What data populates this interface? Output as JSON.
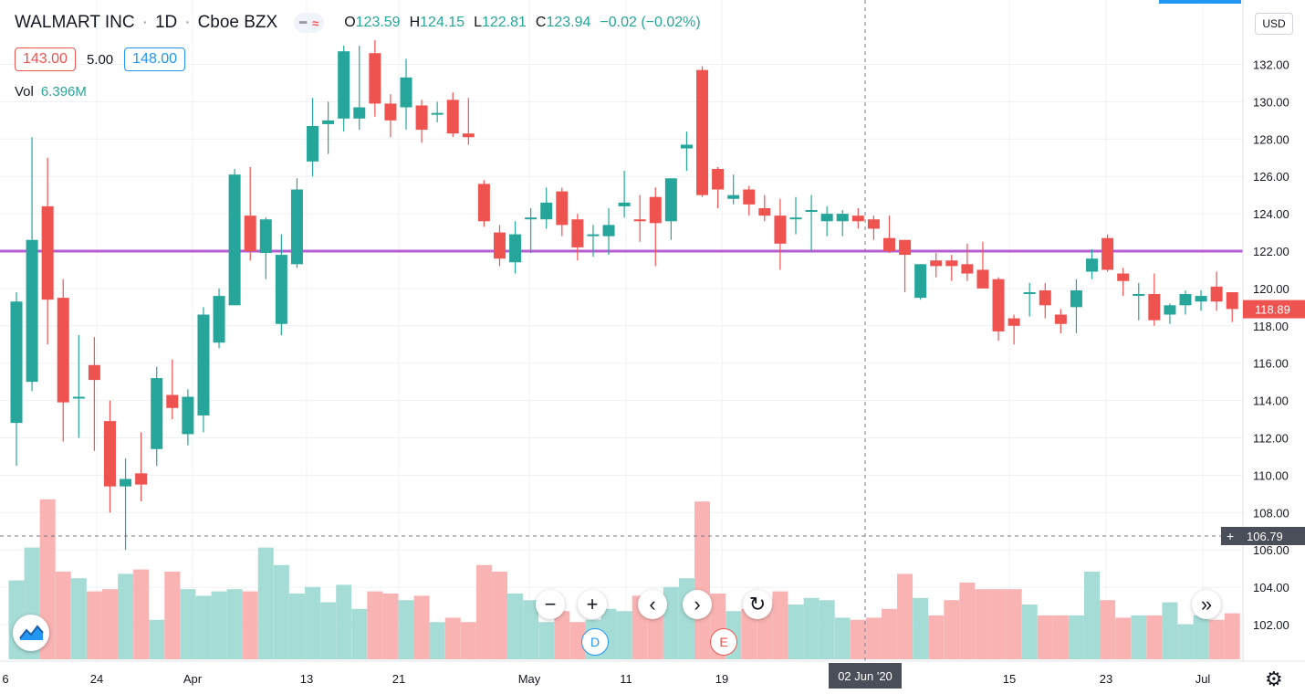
{
  "header": {
    "symbol": "WALMART INC",
    "interval": "1D",
    "exchange": "Cboe BZX",
    "ohlc": {
      "o_label": "O",
      "o": "123.59",
      "h_label": "H",
      "h": "124.15",
      "l_label": "L",
      "l": "122.81",
      "c_label": "C",
      "c": "123.94",
      "change": "−0.02 (−0.02%)"
    },
    "sell_price": "143.00",
    "spread": "5.00",
    "buy_price": "148.00",
    "vol_label": "Vol",
    "vol_value": "6.396M"
  },
  "currency_button": "USD",
  "crosshair": {
    "date_label": "02 Jun '20",
    "price_label": "106.79"
  },
  "last_price_label": "118.89",
  "nav": {
    "zoom_out": "−",
    "zoom_in": "+",
    "scroll_left": "‹",
    "scroll_right": "›",
    "reset": "↻",
    "go_to_end": "»"
  },
  "events": {
    "dividend": "D",
    "earnings": "E"
  },
  "colors": {
    "up": "#26a69a",
    "down": "#ef5350",
    "vol_up": "#a6dcd6",
    "vol_down": "#f8b3b2",
    "hline": "#b45ed1",
    "grid": "#eef0f4"
  },
  "icons": [
    "tradingview-logo-icon",
    "settings-gear-icon",
    "price-plus-icon"
  ],
  "chart_data": {
    "type": "candlestick",
    "horizontal_line": 122.0,
    "ylim": [
      100.0,
      134.0
    ],
    "y_ticks": [
      "132.00",
      "130.00",
      "128.00",
      "126.00",
      "124.00",
      "122.00",
      "120.00",
      "118.00",
      "116.00",
      "114.00",
      "112.00",
      "110.00",
      "108.00",
      "106.00",
      "104.00",
      "102.00"
    ],
    "x_tick_labels": [
      "6",
      "24",
      "Apr",
      "13",
      "21",
      "May",
      "11",
      "19",
      "15",
      "23",
      "Jul"
    ],
    "candles": [
      {
        "o": 112.8,
        "h": 119.8,
        "l": 110.5,
        "c": 119.3
      },
      {
        "o": 115.0,
        "h": 128.1,
        "l": 114.5,
        "c": 122.6
      },
      {
        "o": 124.4,
        "h": 127.0,
        "l": 117.0,
        "c": 119.4
      },
      {
        "o": 119.5,
        "h": 120.5,
        "l": 111.8,
        "c": 113.9
      },
      {
        "o": 114.2,
        "h": 117.5,
        "l": 112.0,
        "c": 114.2
      },
      {
        "o": 115.9,
        "h": 117.4,
        "l": 111.3,
        "c": 115.1
      },
      {
        "o": 112.9,
        "h": 114.0,
        "l": 108.0,
        "c": 109.4
      },
      {
        "o": 109.4,
        "h": 110.9,
        "l": 106.0,
        "c": 109.8
      },
      {
        "o": 110.1,
        "h": 112.3,
        "l": 108.6,
        "c": 109.5
      },
      {
        "o": 111.4,
        "h": 115.8,
        "l": 110.5,
        "c": 115.2
      },
      {
        "o": 114.3,
        "h": 116.2,
        "l": 113.0,
        "c": 113.6
      },
      {
        "o": 112.2,
        "h": 114.6,
        "l": 111.6,
        "c": 114.2
      },
      {
        "o": 113.2,
        "h": 119.0,
        "l": 112.3,
        "c": 118.6
      },
      {
        "o": 117.1,
        "h": 120.0,
        "l": 116.8,
        "c": 119.6
      },
      {
        "o": 119.1,
        "h": 126.4,
        "l": 119.1,
        "c": 126.1
      },
      {
        "o": 123.9,
        "h": 126.5,
        "l": 121.5,
        "c": 122.0
      },
      {
        "o": 121.9,
        "h": 123.8,
        "l": 120.5,
        "c": 123.7
      },
      {
        "o": 118.1,
        "h": 122.9,
        "l": 117.5,
        "c": 121.8
      },
      {
        "o": 121.3,
        "h": 125.9,
        "l": 121.1,
        "c": 125.3
      },
      {
        "o": 126.8,
        "h": 130.2,
        "l": 126.0,
        "c": 128.7
      },
      {
        "o": 128.8,
        "h": 130.0,
        "l": 127.2,
        "c": 129.0
      },
      {
        "o": 129.1,
        "h": 133.0,
        "l": 128.4,
        "c": 132.7
      },
      {
        "o": 129.1,
        "h": 133.0,
        "l": 128.5,
        "c": 129.7
      },
      {
        "o": 132.6,
        "h": 133.3,
        "l": 129.2,
        "c": 129.9
      },
      {
        "o": 129.9,
        "h": 130.4,
        "l": 128.1,
        "c": 129.0
      },
      {
        "o": 129.7,
        "h": 132.3,
        "l": 128.5,
        "c": 131.3
      },
      {
        "o": 129.8,
        "h": 130.1,
        "l": 127.8,
        "c": 128.5
      },
      {
        "o": 129.4,
        "h": 130.0,
        "l": 128.9,
        "c": 129.4
      },
      {
        "o": 130.1,
        "h": 130.5,
        "l": 128.1,
        "c": 128.3
      },
      {
        "o": 128.3,
        "h": 130.2,
        "l": 127.7,
        "c": 128.1
      },
      {
        "o": 125.6,
        "h": 125.8,
        "l": 123.3,
        "c": 123.6
      },
      {
        "o": 123.0,
        "h": 123.4,
        "l": 121.2,
        "c": 121.6
      },
      {
        "o": 121.4,
        "h": 123.6,
        "l": 120.8,
        "c": 122.9
      },
      {
        "o": 123.8,
        "h": 124.3,
        "l": 121.9,
        "c": 123.8
      },
      {
        "o": 123.7,
        "h": 125.4,
        "l": 123.2,
        "c": 124.6
      },
      {
        "o": 125.2,
        "h": 125.4,
        "l": 122.8,
        "c": 123.4
      },
      {
        "o": 123.7,
        "h": 124.0,
        "l": 121.5,
        "c": 122.2
      },
      {
        "o": 122.8,
        "h": 123.4,
        "l": 121.7,
        "c": 122.9
      },
      {
        "o": 122.8,
        "h": 124.3,
        "l": 121.8,
        "c": 123.4
      },
      {
        "o": 124.4,
        "h": 126.3,
        "l": 123.8,
        "c": 124.6
      },
      {
        "o": 123.7,
        "h": 125.0,
        "l": 122.5,
        "c": 123.6
      },
      {
        "o": 124.9,
        "h": 125.4,
        "l": 121.2,
        "c": 123.5
      },
      {
        "o": 123.6,
        "h": 125.8,
        "l": 122.6,
        "c": 125.9
      },
      {
        "o": 127.5,
        "h": 128.4,
        "l": 126.3,
        "c": 127.7
      },
      {
        "o": 131.7,
        "h": 131.9,
        "l": 124.9,
        "c": 125.0
      },
      {
        "o": 126.4,
        "h": 126.5,
        "l": 124.3,
        "c": 125.3
      },
      {
        "o": 124.8,
        "h": 126.1,
        "l": 124.5,
        "c": 125.0
      },
      {
        "o": 125.3,
        "h": 125.5,
        "l": 123.9,
        "c": 124.5
      },
      {
        "o": 124.3,
        "h": 125.0,
        "l": 123.6,
        "c": 123.9
      },
      {
        "o": 123.9,
        "h": 124.8,
        "l": 121.0,
        "c": 122.4
      },
      {
        "o": 123.8,
        "h": 124.9,
        "l": 122.9,
        "c": 123.8
      },
      {
        "o": 124.1,
        "h": 125.0,
        "l": 122.0,
        "c": 124.2
      },
      {
        "o": 123.6,
        "h": 124.4,
        "l": 122.8,
        "c": 124.0
      },
      {
        "o": 123.6,
        "h": 124.2,
        "l": 122.8,
        "c": 124.0
      },
      {
        "o": 123.9,
        "h": 124.3,
        "l": 123.2,
        "c": 123.6
      },
      {
        "o": 123.7,
        "h": 123.9,
        "l": 122.6,
        "c": 123.2
      },
      {
        "o": 122.7,
        "h": 123.9,
        "l": 121.9,
        "c": 122.0
      },
      {
        "o": 122.6,
        "h": 122.6,
        "l": 119.8,
        "c": 121.8
      },
      {
        "o": 119.5,
        "h": 121.3,
        "l": 119.4,
        "c": 121.3
      },
      {
        "o": 121.5,
        "h": 121.9,
        "l": 120.6,
        "c": 121.2
      },
      {
        "o": 121.5,
        "h": 121.8,
        "l": 120.4,
        "c": 121.2
      },
      {
        "o": 121.3,
        "h": 122.4,
        "l": 120.4,
        "c": 120.8
      },
      {
        "o": 121.0,
        "h": 122.5,
        "l": 120.0,
        "c": 120.0
      },
      {
        "o": 120.5,
        "h": 120.6,
        "l": 117.2,
        "c": 117.7
      },
      {
        "o": 118.4,
        "h": 118.6,
        "l": 117.0,
        "c": 118.0
      },
      {
        "o": 119.8,
        "h": 120.3,
        "l": 118.5,
        "c": 119.8
      },
      {
        "o": 119.9,
        "h": 120.3,
        "l": 118.4,
        "c": 119.1
      },
      {
        "o": 118.6,
        "h": 118.9,
        "l": 117.6,
        "c": 118.1
      },
      {
        "o": 119.0,
        "h": 120.5,
        "l": 117.6,
        "c": 119.9
      },
      {
        "o": 120.9,
        "h": 122.1,
        "l": 120.5,
        "c": 121.6
      },
      {
        "o": 122.7,
        "h": 122.9,
        "l": 120.9,
        "c": 121.0
      },
      {
        "o": 120.8,
        "h": 121.1,
        "l": 119.6,
        "c": 120.4
      },
      {
        "o": 119.7,
        "h": 120.3,
        "l": 118.3,
        "c": 119.7
      },
      {
        "o": 119.7,
        "h": 120.8,
        "l": 118.0,
        "c": 118.3
      },
      {
        "o": 118.6,
        "h": 119.2,
        "l": 118.1,
        "c": 119.1
      },
      {
        "o": 119.1,
        "h": 119.9,
        "l": 118.6,
        "c": 119.7
      },
      {
        "o": 119.3,
        "h": 119.9,
        "l": 118.8,
        "c": 119.6
      },
      {
        "o": 120.1,
        "h": 120.9,
        "l": 118.8,
        "c": 119.3
      },
      {
        "o": 119.8,
        "h": 119.8,
        "l": 118.2,
        "c": 118.9
      }
    ],
    "volume_scale": "relative",
    "volumes": [
      0.36,
      0.51,
      0.73,
      0.4,
      0.37,
      0.31,
      0.32,
      0.39,
      0.41,
      0.18,
      0.4,
      0.32,
      0.29,
      0.31,
      0.32,
      0.31,
      0.51,
      0.43,
      0.3,
      0.33,
      0.26,
      0.34,
      0.23,
      0.31,
      0.3,
      0.27,
      0.29,
      0.17,
      0.19,
      0.17,
      0.43,
      0.4,
      0.3,
      0.27,
      0.17,
      0.22,
      0.17,
      0.18,
      0.23,
      0.22,
      0.29,
      0.27,
      0.33,
      0.37,
      0.72,
      0.3,
      0.22,
      0.23,
      0.25,
      0.31,
      0.25,
      0.28,
      0.27,
      0.19,
      0.18,
      0.19,
      0.23,
      0.39,
      0.28,
      0.2,
      0.27,
      0.35,
      0.32,
      0.32,
      0.32,
      0.25,
      0.2,
      0.2,
      0.2,
      0.4,
      0.27,
      0.19,
      0.2,
      0.2,
      0.26,
      0.16,
      0.2,
      0.18,
      0.21
    ]
  }
}
